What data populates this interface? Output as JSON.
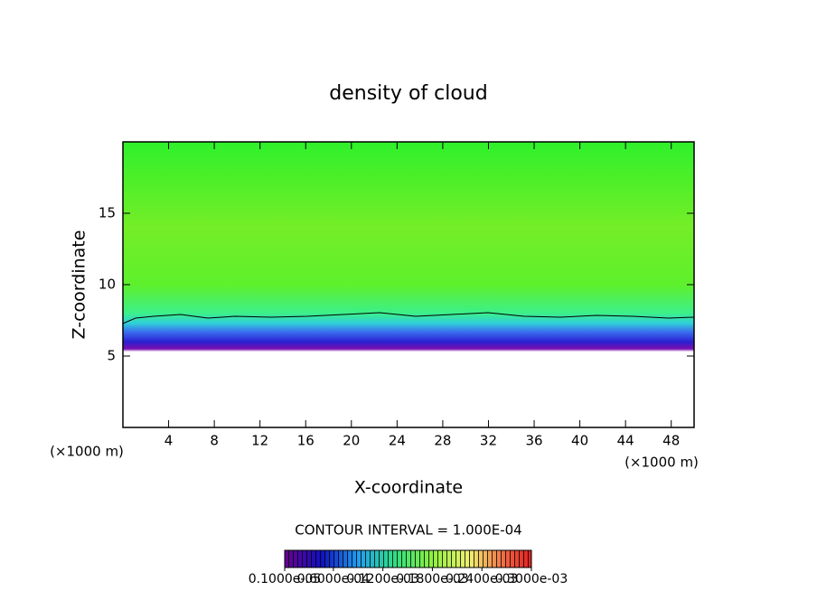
{
  "chart_data": {
    "type": "heatmap",
    "title": "density of cloud",
    "x_label": "X-coordinate",
    "y_label": "Z-coordinate",
    "x_unit": "(×1000 m)",
    "y_unit": "(×1000 m)",
    "xlim": [
      0,
      50
    ],
    "xticks": [
      4,
      8,
      12,
      16,
      20,
      24,
      28,
      32,
      36,
      40,
      44,
      48
    ],
    "ylim": [
      0,
      20
    ],
    "yticks": [
      5,
      10,
      15
    ],
    "contour_interval": "CONTOUR INTERVAL = 1.000E-04",
    "clim": [
      1e-06,
      0.0003
    ],
    "cticks": [
      {
        "value": 1e-06,
        "label": "0.1000e-05"
      },
      {
        "value": 6e-05,
        "label": "0.6000e-04"
      },
      {
        "value": 0.00012,
        "label": "0.1200e-03"
      },
      {
        "value": 0.00018,
        "label": "0.1800e-03"
      },
      {
        "value": 0.00024,
        "label": "0.2400e-03"
      },
      {
        "value": 0.0003,
        "label": "0.3000e-03"
      }
    ]
  }
}
